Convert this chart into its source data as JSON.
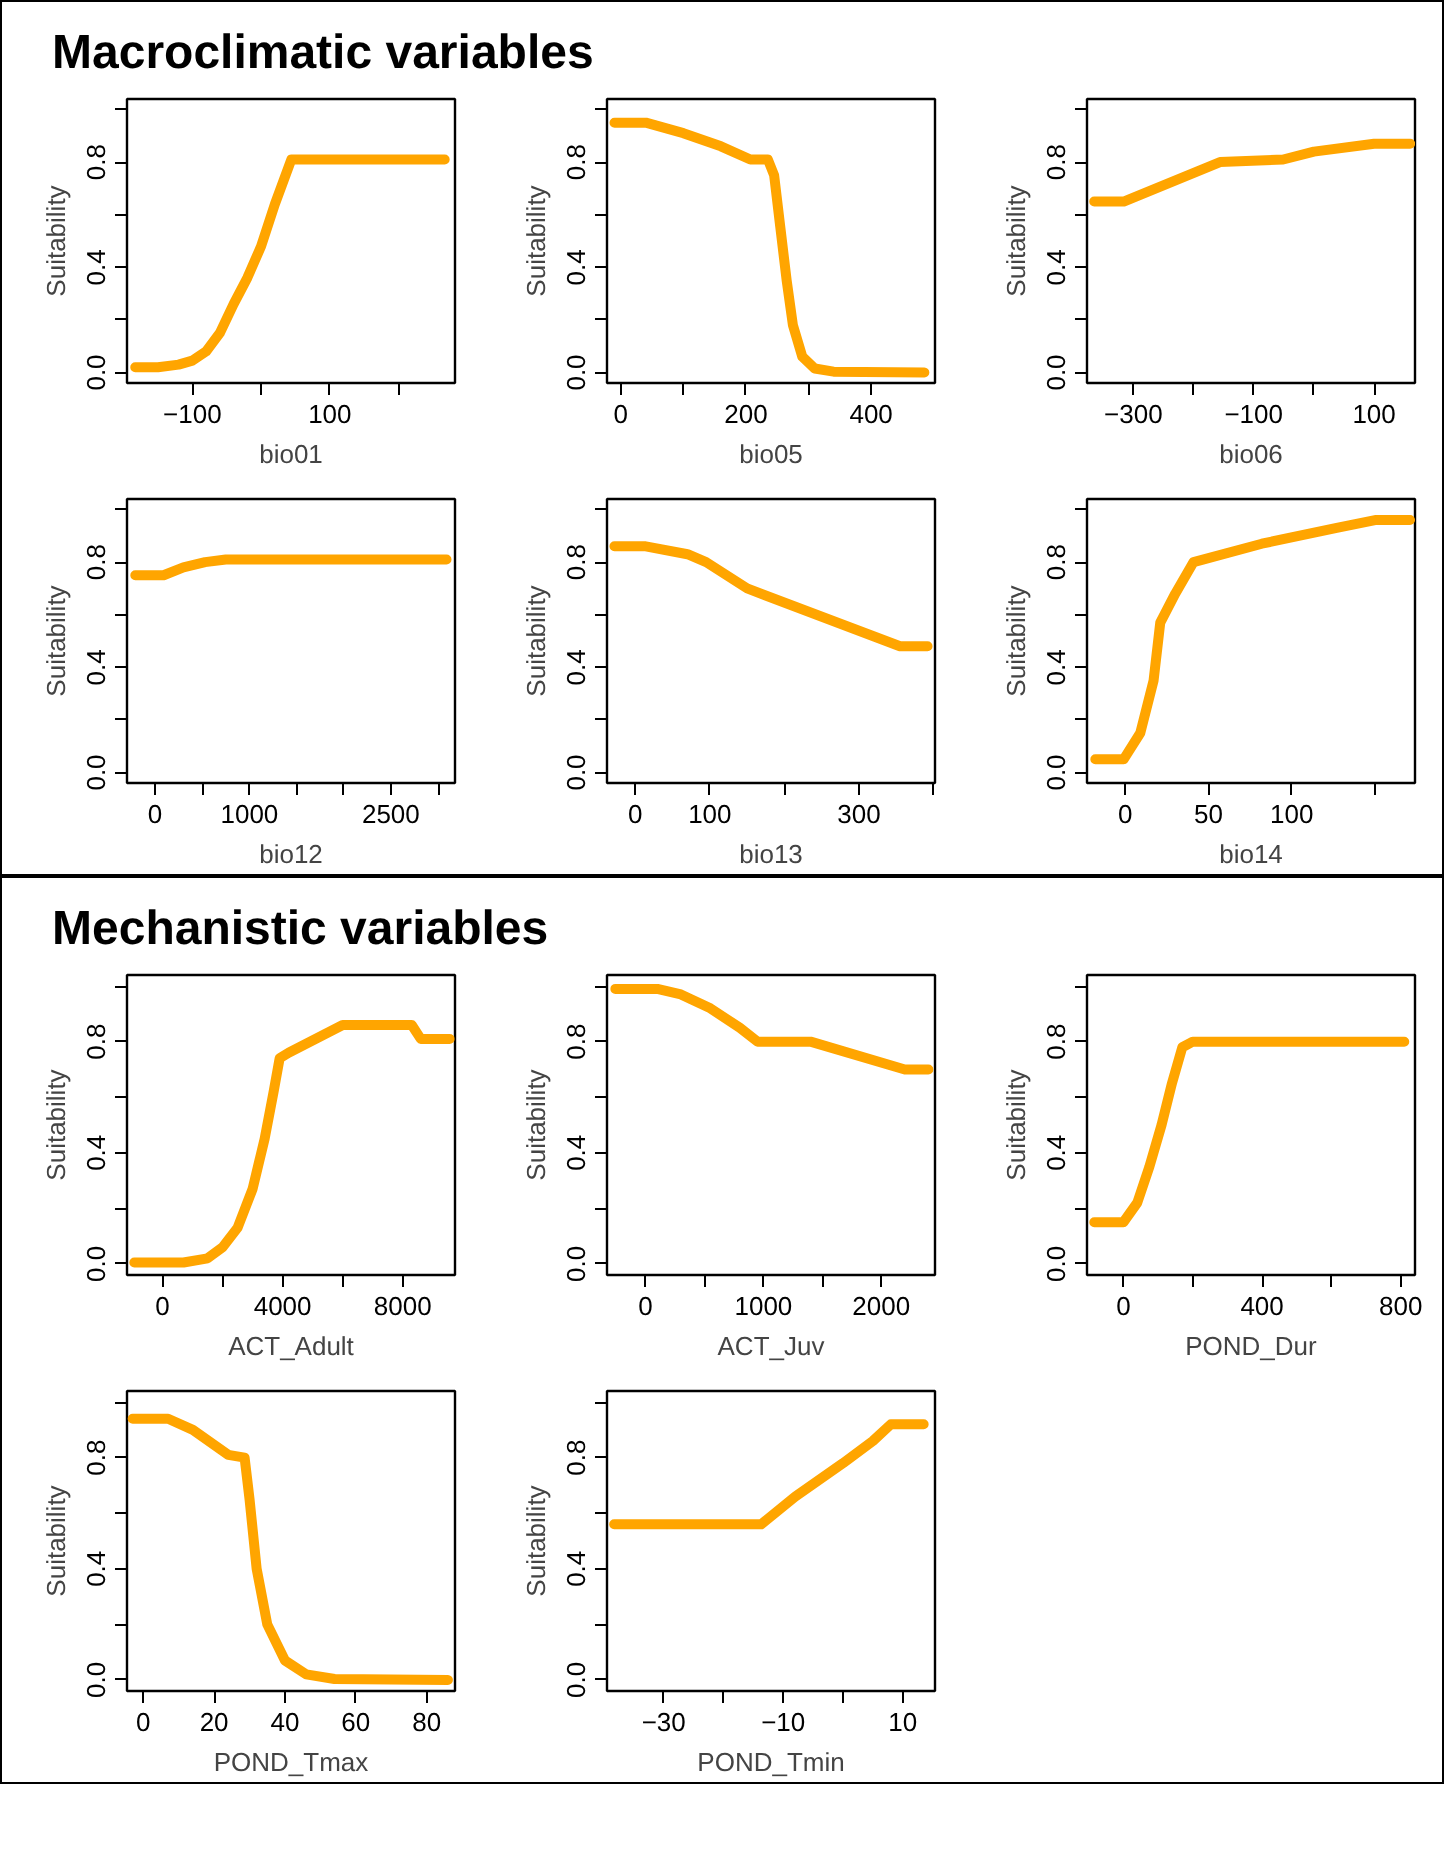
{
  "chart_data": [
    {
      "type": "line",
      "title": "Macroclimatic variables",
      "xlabel": "bio01",
      "ylabel": "Suitability",
      "color": "#ffa500",
      "line_style": "solid",
      "grid": false,
      "x": [
        -183,
        -150,
        -120,
        -100,
        -80,
        -60,
        -40,
        -20,
        0,
        20,
        44,
        267
      ],
      "values": [
        0.02,
        0.02,
        0.03,
        0.045,
        0.08,
        0.15,
        0.26,
        0.36,
        0.48,
        0.64,
        0.81,
        0.81
      ],
      "xlim": [
        -195,
        282
      ],
      "xticks": [
        -100,
        {
          "value": 0,
          "label": null
        },
        100,
        {
          "value": 200,
          "label": null
        }
      ],
      "ylim": [
        -0.04,
        1.04
      ],
      "yticks": [
        "0.0",
        {
          "value": 0.2,
          "label": null
        },
        {
          "value": 0.4,
          "label": "0.4"
        },
        {
          "value": 0.6,
          "label": null
        },
        {
          "value": 0.8,
          "label": "0.8"
        },
        {
          "value": 1.0,
          "label": null
        }
      ]
    },
    {
      "type": "line",
      "xlabel": "bio05",
      "ylabel": "Suitability",
      "color": "#ffa500",
      "line_style": "solid",
      "grid": false,
      "x": [
        -10,
        40,
        100,
        160,
        207,
        235,
        245,
        255,
        265,
        275,
        290,
        310,
        340,
        485
      ],
      "values": [
        0.95,
        0.95,
        0.91,
        0.86,
        0.81,
        0.81,
        0.75,
        0.55,
        0.35,
        0.18,
        0.06,
        0.015,
        0.003,
        0.0
      ],
      "xlim": [
        -22,
        502
      ],
      "xticks": [
        0,
        {
          "value": 100,
          "label": null
        },
        200,
        {
          "value": 300,
          "label": null
        },
        400
      ],
      "ylim": [
        -0.04,
        1.04
      ],
      "yticks": [
        {
          "value": 0,
          "label": "0.0"
        },
        {
          "value": 0.2,
          "label": null
        },
        {
          "value": 0.4,
          "label": "0.4"
        },
        {
          "value": 0.6,
          "label": null
        },
        {
          "value": 0.8,
          "label": "0.8"
        },
        {
          "value": 1.0,
          "label": null
        }
      ]
    },
    {
      "type": "line",
      "xlabel": "bio06",
      "ylabel": "Suitability",
      "color": "#ffa500",
      "line_style": "solid",
      "grid": false,
      "x": [
        -365,
        -316,
        -156,
        -51,
        0,
        100,
        160
      ],
      "values": [
        0.65,
        0.65,
        0.8,
        0.81,
        0.84,
        0.87,
        0.87
      ],
      "xlim": [
        -377,
        168
      ],
      "xticks": [
        -300,
        {
          "value": -200,
          "label": null
        },
        -100,
        {
          "value": 0,
          "label": null
        },
        100
      ],
      "ylim": [
        -0.04,
        1.04
      ],
      "yticks": [
        {
          "value": 0,
          "label": "0.0"
        },
        {
          "value": 0.2,
          "label": null
        },
        {
          "value": 0.4,
          "label": "0.4"
        },
        {
          "value": 0.6,
          "label": null
        },
        {
          "value": 0.8,
          "label": "0.8"
        },
        {
          "value": 1.0,
          "label": null
        }
      ]
    },
    {
      "type": "line",
      "xlabel": "bio12",
      "ylabel": "Suitability",
      "color": "#ffa500",
      "line_style": "solid",
      "grid": false,
      "x": [
        -210,
        90,
        300,
        530,
        750,
        3090
      ],
      "values": [
        0.75,
        0.75,
        0.78,
        0.8,
        0.81,
        0.81
      ],
      "xlim": [
        -298,
        3180
      ],
      "xticks": [
        0,
        {
          "value": 500,
          "label": null
        },
        1000,
        {
          "value": 1500,
          "label": null
        },
        {
          "value": 2000,
          "label": null
        },
        2500,
        {
          "value": 3000,
          "label": null
        }
      ],
      "ylim": [
        -0.04,
        1.04
      ],
      "yticks": [
        {
          "value": 0,
          "label": "0.0"
        },
        {
          "value": 0.2,
          "label": null
        },
        {
          "value": 0.4,
          "label": "0.4"
        },
        {
          "value": 0.6,
          "label": null
        },
        {
          "value": 0.8,
          "label": "0.8"
        },
        {
          "value": 1.0,
          "label": null
        }
      ]
    },
    {
      "type": "line",
      "xlabel": "bio13",
      "ylabel": "Suitability",
      "color": "#ffa500",
      "line_style": "solid",
      "grid": false,
      "x": [
        -28,
        14,
        70,
        95,
        150,
        355,
        392
      ],
      "values": [
        0.86,
        0.86,
        0.83,
        0.8,
        0.7,
        0.48,
        0.48
      ],
      "xlim": [
        -38,
        402
      ],
      "xticks": [
        0,
        100,
        {
          "value": 200,
          "label": null
        },
        300,
        {
          "value": 400,
          "label": null
        }
      ],
      "ylim": [
        -0.04,
        1.04
      ],
      "yticks": [
        {
          "value": 0,
          "label": "0.0"
        },
        {
          "value": 0.2,
          "label": null
        },
        {
          "value": 0.4,
          "label": "0.4"
        },
        {
          "value": 0.6,
          "label": null
        },
        {
          "value": 0.8,
          "label": "0.8"
        },
        {
          "value": 1.0,
          "label": null
        }
      ]
    },
    {
      "type": "line",
      "xlabel": "bio14",
      "ylabel": "Suitability",
      "color": "#ffa500",
      "line_style": "solid",
      "grid": false,
      "x": [
        -18,
        -1,
        9,
        17,
        21,
        30,
        41,
        82,
        127,
        150,
        171
      ],
      "values": [
        0.05,
        0.05,
        0.15,
        0.35,
        0.57,
        0.68,
        0.8,
        0.87,
        0.93,
        0.96,
        0.96
      ],
      "xlim": [
        -23,
        174
      ],
      "xticks": [
        0,
        50,
        100,
        {
          "value": 150,
          "label": null
        }
      ],
      "ylim": [
        -0.04,
        1.04
      ],
      "yticks": [
        {
          "value": 0,
          "label": "0.0"
        },
        {
          "value": 0.2,
          "label": null
        },
        {
          "value": 0.4,
          "label": "0.4"
        },
        {
          "value": 0.6,
          "label": null
        },
        {
          "value": 0.8,
          "label": "0.8"
        },
        {
          "value": 1.0,
          "label": null
        }
      ]
    },
    {
      "type": "line",
      "title": "Mechanistic variables",
      "xlabel": "ACT_Adult",
      "ylabel": "Suitability",
      "color": "#ffa500",
      "line_style": "solid",
      "grid": false,
      "x": [
        -940,
        700,
        1500,
        2000,
        2500,
        3000,
        3400,
        3700,
        3900,
        4200,
        6000,
        8300,
        8600,
        9560
      ],
      "values": [
        0.005,
        0.005,
        0.02,
        0.06,
        0.13,
        0.27,
        0.45,
        0.62,
        0.74,
        0.76,
        0.86,
        0.86,
        0.81,
        0.81
      ],
      "xlim": [
        -1183,
        9740
      ],
      "xticks": [
        0,
        {
          "value": 2000,
          "label": null
        },
        4000,
        {
          "value": 6000,
          "label": null
        },
        8000
      ],
      "ylim": [
        -0.04,
        1.04
      ],
      "yticks": [
        {
          "value": 0,
          "label": "0.0"
        },
        {
          "value": 0.2,
          "label": null
        },
        {
          "value": 0.4,
          "label": "0.4"
        },
        {
          "value": 0.6,
          "label": null
        },
        {
          "value": 0.8,
          "label": "0.8"
        },
        {
          "value": 1.0,
          "label": null
        }
      ]
    },
    {
      "type": "line",
      "xlabel": "ACT_Juv",
      "ylabel": "Suitability",
      "color": "#ffa500",
      "line_style": "solid",
      "grid": false,
      "x": [
        -256,
        100,
        300,
        550,
        800,
        950,
        1400,
        2200,
        2400
      ],
      "values": [
        0.99,
        0.99,
        0.97,
        0.92,
        0.85,
        0.8,
        0.8,
        0.7,
        0.7
      ],
      "xlim": [
        -327,
        2456
      ],
      "xticks": [
        0,
        {
          "value": 500,
          "label": null
        },
        1000,
        {
          "value": 1500,
          "label": null
        },
        2000
      ],
      "ylim": [
        -0.04,
        1.04
      ],
      "yticks": [
        {
          "value": 0,
          "label": "0.0"
        },
        {
          "value": 0.2,
          "label": null
        },
        {
          "value": 0.4,
          "label": "0.4"
        },
        {
          "value": 0.6,
          "label": null
        },
        {
          "value": 0.8,
          "label": "0.8"
        },
        {
          "value": 1.0,
          "label": null
        }
      ]
    },
    {
      "type": "line",
      "xlabel": "POND_Dur",
      "ylabel": "Suitability",
      "color": "#ffa500",
      "line_style": "solid",
      "grid": false,
      "x": [
        -84,
        0,
        40,
        75,
        110,
        140,
        170,
        200,
        810
      ],
      "values": [
        0.15,
        0.15,
        0.22,
        0.35,
        0.5,
        0.65,
        0.78,
        0.8,
        0.8
      ],
      "xlim": [
        -105,
        841
      ],
      "xticks": [
        0,
        {
          "value": 200,
          "label": null
        },
        400,
        {
          "value": 600,
          "label": null
        },
        800
      ],
      "ylim": [
        -0.04,
        1.04
      ],
      "yticks": [
        {
          "value": 0,
          "label": "0.0"
        },
        {
          "value": 0.2,
          "label": null
        },
        {
          "value": 0.4,
          "label": "0.4"
        },
        {
          "value": 0.6,
          "label": null
        },
        {
          "value": 0.8,
          "label": "0.8"
        },
        {
          "value": 1.0,
          "label": null
        }
      ]
    },
    {
      "type": "line",
      "xlabel": "POND_Tmax",
      "ylabel": "Suitability",
      "color": "#ffa500",
      "line_style": "solid",
      "grid": false,
      "x": [
        -3,
        7,
        14,
        24,
        28.6,
        30,
        32,
        35,
        40,
        46,
        54,
        86
      ],
      "values": [
        0.94,
        0.94,
        0.9,
        0.81,
        0.8,
        0.65,
        0.4,
        0.2,
        0.07,
        0.02,
        0.003,
        0.0
      ],
      "xlim": [
        -4.6,
        88
      ],
      "xticks": [
        0,
        20,
        40,
        60,
        80
      ],
      "ylim": [
        -0.04,
        1.04
      ],
      "yticks": [
        {
          "value": 0,
          "label": "0.0"
        },
        {
          "value": 0.2,
          "label": null
        },
        {
          "value": 0.4,
          "label": "0.4"
        },
        {
          "value": 0.6,
          "label": null
        },
        {
          "value": 0.8,
          "label": "0.8"
        },
        {
          "value": 1.0,
          "label": null
        }
      ]
    },
    {
      "type": "line",
      "xlabel": "POND_Tmin",
      "ylabel": "Suitability",
      "color": "#ffa500",
      "line_style": "solid",
      "grid": false,
      "x": [
        -38.3,
        -13.7,
        -8,
        0,
        5,
        8,
        13.5
      ],
      "values": [
        0.56,
        0.56,
        0.66,
        0.78,
        0.86,
        0.92,
        0.92
      ],
      "xlim": [
        -39.5,
        15.4
      ],
      "xticks": [
        -30,
        {
          "value": -20,
          "label": null
        },
        -10,
        {
          "value": 0,
          "label": null
        },
        10
      ],
      "ylim": [
        -0.04,
        1.04
      ],
      "yticks": [
        {
          "value": 0,
          "label": "0.0"
        },
        {
          "value": 0.2,
          "label": null
        },
        {
          "value": 0.4,
          "label": "0.4"
        },
        {
          "value": 0.6,
          "label": null
        },
        {
          "value": 0.8,
          "label": "0.8"
        },
        {
          "value": 1.0,
          "label": null
        }
      ]
    }
  ]
}
